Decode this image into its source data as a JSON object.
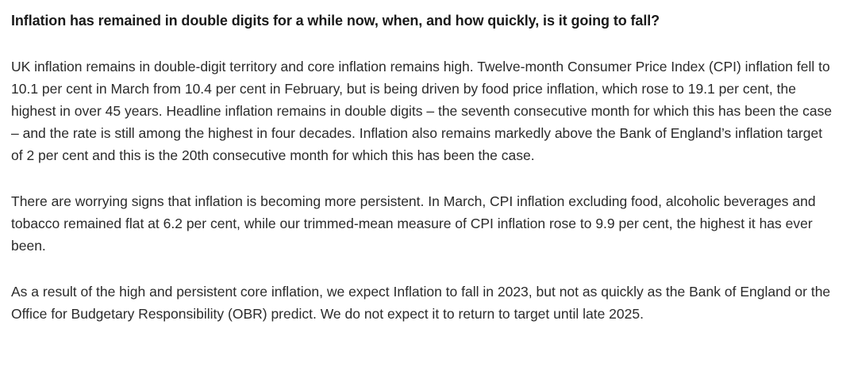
{
  "article": {
    "heading": "Inflation has remained in double digits for a while now, when, and how quickly, is it going to fall?",
    "paragraphs": [
      "UK inflation remains in double-digit territory and core inflation remains high. Twelve-month Consumer Price Index (CPI) inflation fell to 10.1 per cent in March from 10.4 per cent in February, but is being driven by food price inflation, which rose to 19.1 per cent, the highest in over 45 years. Headline inflation remains in double digits – the seventh consecutive month for which this has been the case – and the rate is still among the highest in four decades. Inflation also remains markedly above the Bank of England’s inflation target of 2 per cent and this is the 20th consecutive month for which this has been the case.",
      "There are worrying signs that inflation is becoming more persistent. In March, CPI inflation excluding food, alcoholic beverages and tobacco remained flat at 6.2 per cent, while our trimmed-mean measure of CPI inflation rose to 9.9 per cent, the highest it has ever been.",
      "As a result of the high and persistent core inflation, we expect Inflation to fall in 2023, but not as quickly as the Bank of England or the Office for Budgetary Responsibility (OBR) predict. We do not expect it to return to target until late 2025."
    ]
  }
}
